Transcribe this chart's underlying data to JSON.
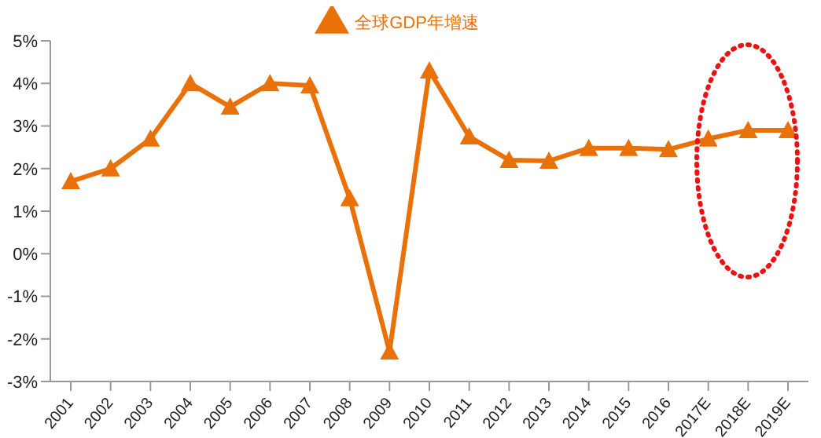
{
  "chart_data": {
    "type": "line",
    "categories": [
      "2001",
      "2002",
      "2003",
      "2004",
      "2005",
      "2006",
      "2007",
      "2008",
      "2009",
      "2010",
      "2011",
      "2012",
      "2013",
      "2014",
      "2015",
      "2016",
      "2017E",
      "2018E",
      "2019E"
    ],
    "series": [
      {
        "name": "全球GDP年增速",
        "color": "#e8710a",
        "values": [
          1.7,
          2.0,
          2.7,
          4.0,
          3.45,
          4.0,
          3.95,
          1.3,
          -2.3,
          4.3,
          2.75,
          2.2,
          2.18,
          2.48,
          2.48,
          2.45,
          2.7,
          2.9,
          2.9
        ]
      }
    ],
    "ylim": [
      -3,
      5
    ],
    "yticks": [
      {
        "value": -3,
        "label": "-3%"
      },
      {
        "value": -2,
        "label": "-2%"
      },
      {
        "value": -1,
        "label": "-1%"
      },
      {
        "value": 0,
        "label": "0%"
      },
      {
        "value": 1,
        "label": "1%"
      },
      {
        "value": 2,
        "label": "2%"
      },
      {
        "value": 3,
        "label": "3%"
      },
      {
        "value": 4,
        "label": "4%"
      },
      {
        "value": 5,
        "label": "5%"
      }
    ],
    "marker": "triangle",
    "legend": "top",
    "grid": false
  }
}
